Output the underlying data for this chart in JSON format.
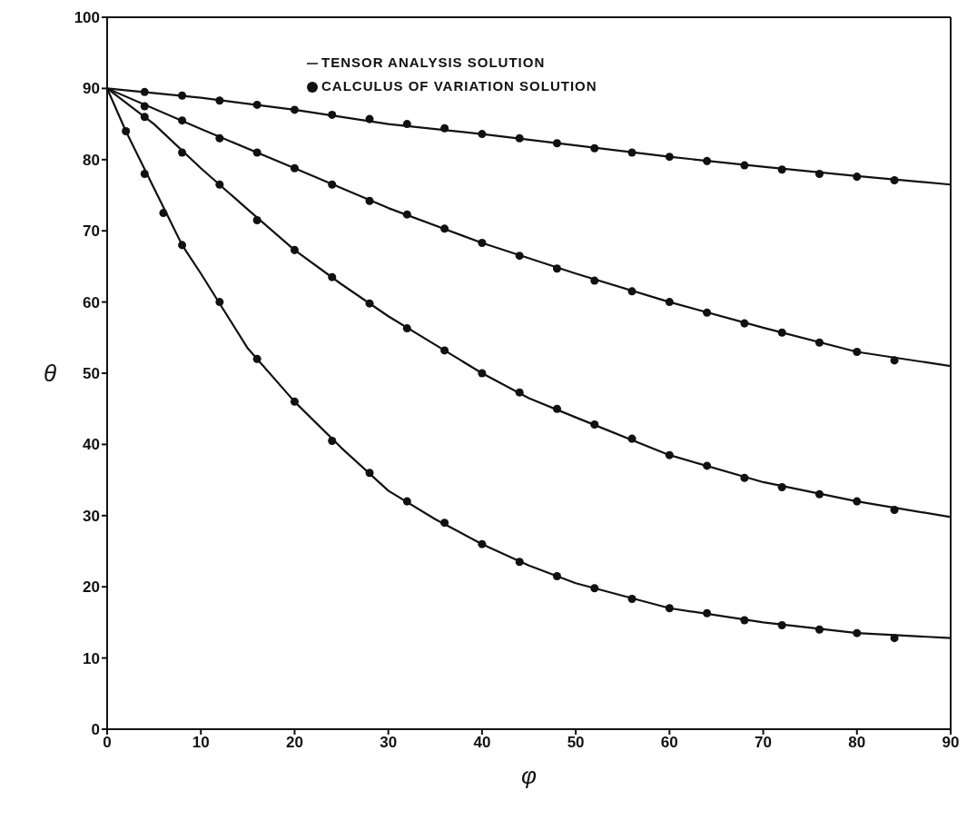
{
  "chart_data": {
    "type": "line",
    "xlabel": "φ",
    "ylabel": "θ",
    "xlim": [
      0,
      90
    ],
    "ylim": [
      0,
      100
    ],
    "xticks": [
      0,
      10,
      20,
      30,
      40,
      50,
      60,
      70,
      80,
      90
    ],
    "yticks": [
      0,
      10,
      20,
      30,
      40,
      50,
      60,
      70,
      80,
      90,
      100
    ],
    "grid": false,
    "legend": "top",
    "series": [
      {
        "name": "TENSOR ANALYSIS SOLUTION",
        "marker": "none",
        "color": "#111111",
        "x": [
          0,
          10,
          20,
          30,
          40,
          50,
          60,
          70,
          80,
          90
        ],
        "values": [
          90,
          88.7,
          87,
          85,
          83.6,
          82,
          80.4,
          79,
          77.7,
          76.5
        ]
      },
      {
        "marker": "none",
        "color": "#111111",
        "x": [
          0,
          10,
          20,
          30,
          40,
          50,
          60,
          70,
          80,
          90
        ],
        "values": [
          90,
          84.3,
          78.8,
          73.2,
          68.3,
          64,
          60,
          56.4,
          53,
          51
        ]
      },
      {
        "marker": "none",
        "color": "#111111",
        "x": [
          0,
          5,
          10,
          15,
          20,
          25,
          30,
          35,
          40,
          45,
          50,
          60,
          70,
          80,
          90
        ],
        "values": [
          90,
          85,
          78.8,
          73,
          67.3,
          62.5,
          58,
          54,
          50,
          46.5,
          43.8,
          38.5,
          34.7,
          32,
          29.8
        ]
      },
      {
        "marker": "none",
        "color": "#111111",
        "x": [
          0,
          2,
          5,
          8,
          10,
          15,
          20,
          25,
          30,
          35,
          40,
          45,
          50,
          60,
          70,
          80,
          90
        ],
        "values": [
          90,
          84,
          76,
          68,
          64,
          53.5,
          46,
          39.5,
          33.5,
          29.5,
          26,
          23,
          20.5,
          17,
          15,
          13.5,
          12.8
        ]
      },
      {
        "name": "CALCULUS OF VARIATION SOLUTION",
        "type": "scatter",
        "marker": "circle",
        "color": "#111111",
        "x": [
          4,
          8,
          12,
          16,
          20,
          24,
          28,
          32,
          36,
          40,
          44,
          48,
          52,
          56,
          60,
          64,
          68,
          72,
          76,
          80,
          84
        ],
        "values": [
          89.5,
          89,
          88.3,
          87.7,
          87,
          86.3,
          85.7,
          85,
          84.4,
          83.6,
          83,
          82.3,
          81.6,
          81,
          80.4,
          79.8,
          79.2,
          78.6,
          78,
          77.6,
          77.1
        ]
      },
      {
        "type": "scatter",
        "marker": "circle",
        "color": "#111111",
        "x": [
          4,
          8,
          12,
          16,
          20,
          24,
          28,
          32,
          36,
          40,
          44,
          48,
          52,
          56,
          60,
          64,
          68,
          72,
          76,
          80,
          84
        ],
        "values": [
          87.5,
          85.5,
          83,
          81,
          78.8,
          76.5,
          74.2,
          72.3,
          70.3,
          68.3,
          66.5,
          64.7,
          63,
          61.5,
          60,
          58.5,
          57,
          55.7,
          54.3,
          53,
          51.8
        ]
      },
      {
        "type": "scatter",
        "marker": "circle",
        "color": "#111111",
        "x": [
          4,
          8,
          12,
          16,
          20,
          24,
          28,
          32,
          36,
          40,
          44,
          48,
          52,
          56,
          60,
          64,
          68,
          72,
          76,
          80,
          84
        ],
        "values": [
          86,
          81,
          76.5,
          71.5,
          67.3,
          63.5,
          59.8,
          56.3,
          53.2,
          50,
          47.3,
          45,
          42.8,
          40.8,
          38.5,
          37,
          35.3,
          34,
          33,
          32,
          30.8
        ]
      },
      {
        "type": "scatter",
        "marker": "circle",
        "color": "#111111",
        "x": [
          2,
          4,
          6,
          8,
          12,
          16,
          20,
          24,
          28,
          32,
          36,
          40,
          44,
          48,
          52,
          56,
          60,
          64,
          68,
          72,
          76,
          80,
          84
        ],
        "values": [
          84,
          78,
          72.5,
          68,
          60,
          52,
          46,
          40.5,
          36,
          32,
          29,
          26,
          23.5,
          21.5,
          19.8,
          18.3,
          17,
          16.3,
          15.3,
          14.6,
          14,
          13.5,
          12.8
        ]
      }
    ]
  }
}
